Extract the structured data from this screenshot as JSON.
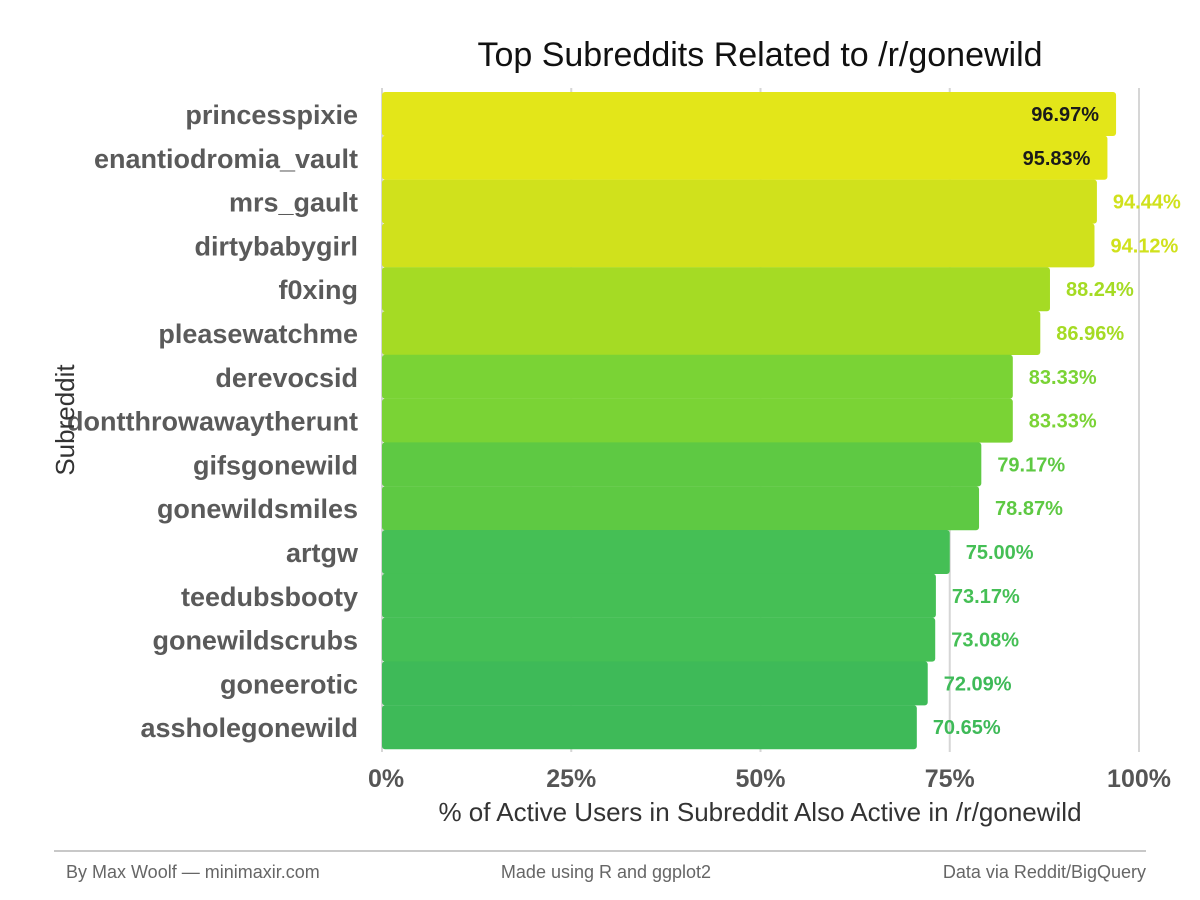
{
  "chart_data": {
    "type": "bar",
    "orientation": "horizontal",
    "title": "Top Subreddits Related to /r/gonewild",
    "xlabel": "% of Active Users in Subreddit Also Active in /r/gonewild",
    "ylabel": "Subreddit",
    "xlim": [
      0,
      100
    ],
    "xticks": [
      "0%",
      "25%",
      "50%",
      "75%",
      "100%"
    ],
    "grid": "vertical",
    "categories": [
      "princesspixie",
      "enantiodromia_vault",
      "mrs_gault",
      "dirtybabygirl",
      "f0xing",
      "pleasewatchme",
      "derevocsid",
      "dontthrowawaytherunt",
      "gifsgonewild",
      "gonewildsmiles",
      "artgw",
      "teedubsbooty",
      "gonewildscrubs",
      "goneerotic",
      "assholegonewild"
    ],
    "values": [
      96.97,
      95.83,
      94.44,
      94.12,
      88.24,
      86.96,
      83.33,
      83.33,
      79.17,
      78.87,
      75.0,
      73.17,
      73.08,
      72.09,
      70.65
    ],
    "labels": [
      "96.97%",
      "95.83%",
      "94.44%",
      "94.12%",
      "88.24%",
      "86.96%",
      "83.33%",
      "83.33%",
      "79.17%",
      "78.87%",
      "75.00%",
      "73.17%",
      "73.08%",
      "72.09%",
      "70.65%"
    ],
    "colors": [
      "#e3e619",
      "#e3e619",
      "#d0e11c",
      "#d0e11c",
      "#a5db24",
      "#a5db24",
      "#7ad335",
      "#7ad335",
      "#5ec943",
      "#5ec943",
      "#45bf55",
      "#45bf55",
      "#45bf55",
      "#3eba58",
      "#3eba58"
    ],
    "label_inside": [
      true,
      true,
      false,
      false,
      false,
      false,
      false,
      false,
      false,
      false,
      false,
      false,
      false,
      false,
      false
    ]
  },
  "footer": {
    "left": "By Max Woolf — minimaxir.com",
    "center": "Made using R and ggplot2",
    "right": "Data via Reddit/BigQuery"
  }
}
